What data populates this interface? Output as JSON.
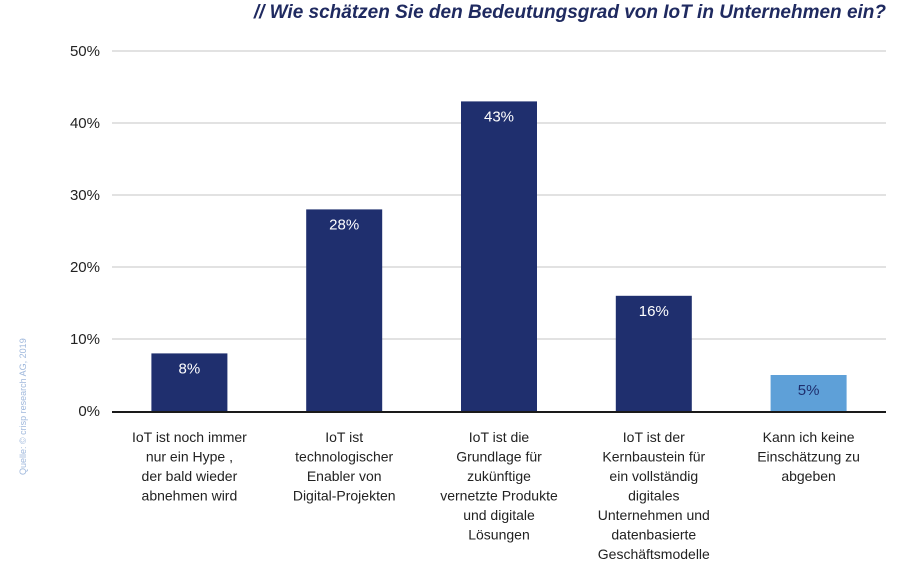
{
  "chart_data": {
    "type": "bar",
    "title": "// Wie schätzen Sie den Bedeutungsgrad von IoT in Unternehmen ein?",
    "source": "Quelle: © crisp research AG, 2019",
    "categories": [
      [
        "IoT ist noch immer",
        "nur  ein Hype ,",
        "der bald wieder",
        "abnehmen wird"
      ],
      [
        "IoT ist",
        "technologischer",
        "Enabler von",
        "Digital-Projekten"
      ],
      [
        "IoT ist die",
        "Grundlage für",
        "zukünftige",
        "vernetzte Produkte",
        "und digitale",
        "Lösungen"
      ],
      [
        "IoT ist der",
        "Kernbaustein für",
        "ein vollständig",
        "digitales",
        "Unternehmen und",
        "datenbasierte",
        "Geschäftsmodelle"
      ],
      [
        "Kann ich keine",
        "Einschätzung zu",
        "abgeben"
      ]
    ],
    "values": [
      8,
      28,
      43,
      16,
      5
    ],
    "value_labels": [
      "8%",
      "28%",
      "43%",
      "16%",
      "5%"
    ],
    "bar_colors": [
      "#1f2f6e",
      "#1f2f6e",
      "#1f2f6e",
      "#1f2f6e",
      "#5ea0d8"
    ],
    "value_label_color": "#ffffff",
    "last_value_label_color": "#1f2f6e",
    "ylim": [
      0,
      50
    ],
    "yticks": [
      0,
      10,
      20,
      30,
      40,
      50
    ],
    "ytick_labels": [
      "0%",
      "10%",
      "20%",
      "30%",
      "40%",
      "50%"
    ],
    "grid": true,
    "legend": "none"
  }
}
